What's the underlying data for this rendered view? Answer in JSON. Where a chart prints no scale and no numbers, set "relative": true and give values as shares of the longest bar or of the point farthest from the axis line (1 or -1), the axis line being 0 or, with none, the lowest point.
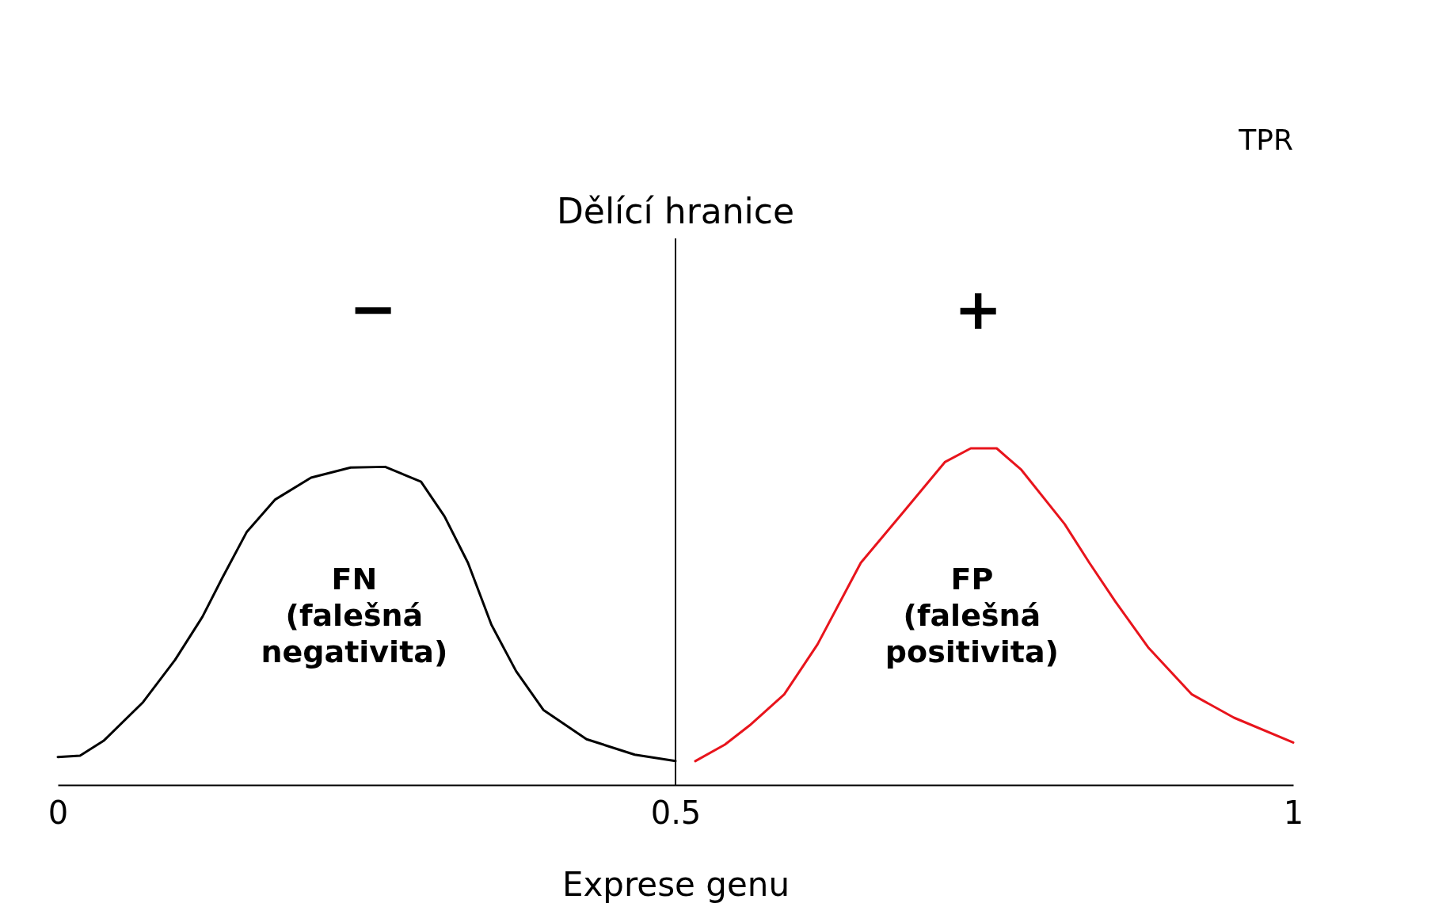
{
  "chart_data": {
    "type": "line",
    "relative": true,
    "xlabel": "Exprese genu",
    "xlim": [
      0,
      1
    ],
    "xticks": [
      0,
      0.5,
      1
    ],
    "series": [
      {
        "color": "#000000",
        "x": [
          0,
          0.018,
          0.037,
          0.069,
          0.095,
          0.117,
          0.133,
          0.153,
          0.176,
          0.205,
          0.237,
          0.265,
          0.294,
          0.313,
          0.332,
          0.351,
          0.371,
          0.393,
          0.428,
          0.467,
          0.5
        ],
        "values": [
          0.083,
          0.087,
          0.131,
          0.246,
          0.372,
          0.499,
          0.614,
          0.752,
          0.848,
          0.913,
          0.943,
          0.945,
          0.901,
          0.798,
          0.66,
          0.476,
          0.338,
          0.223,
          0.136,
          0.09,
          0.071
        ]
      },
      {
        "color": "#e8141c",
        "x": [
          0.516,
          0.54,
          0.56,
          0.588,
          0.615,
          0.65,
          0.684,
          0.718,
          0.739,
          0.76,
          0.78,
          0.815,
          0.835,
          0.856,
          0.883,
          0.918,
          0.952,
          1.0
        ],
        "values": [
          0.071,
          0.12,
          0.177,
          0.269,
          0.418,
          0.66,
          0.809,
          0.959,
          1,
          1,
          0.936,
          0.775,
          0.66,
          0.545,
          0.407,
          0.269,
          0.2,
          0.126
        ]
      }
    ],
    "ref_lines": [
      {
        "axis": "x",
        "value": 0.5,
        "label": "Dělící hranice"
      }
    ],
    "annotations": [
      "FN\n(falešná\nnegativita)",
      "FP\n(falešná\npositivita)",
      "−",
      "+",
      "TPR"
    ]
  }
}
